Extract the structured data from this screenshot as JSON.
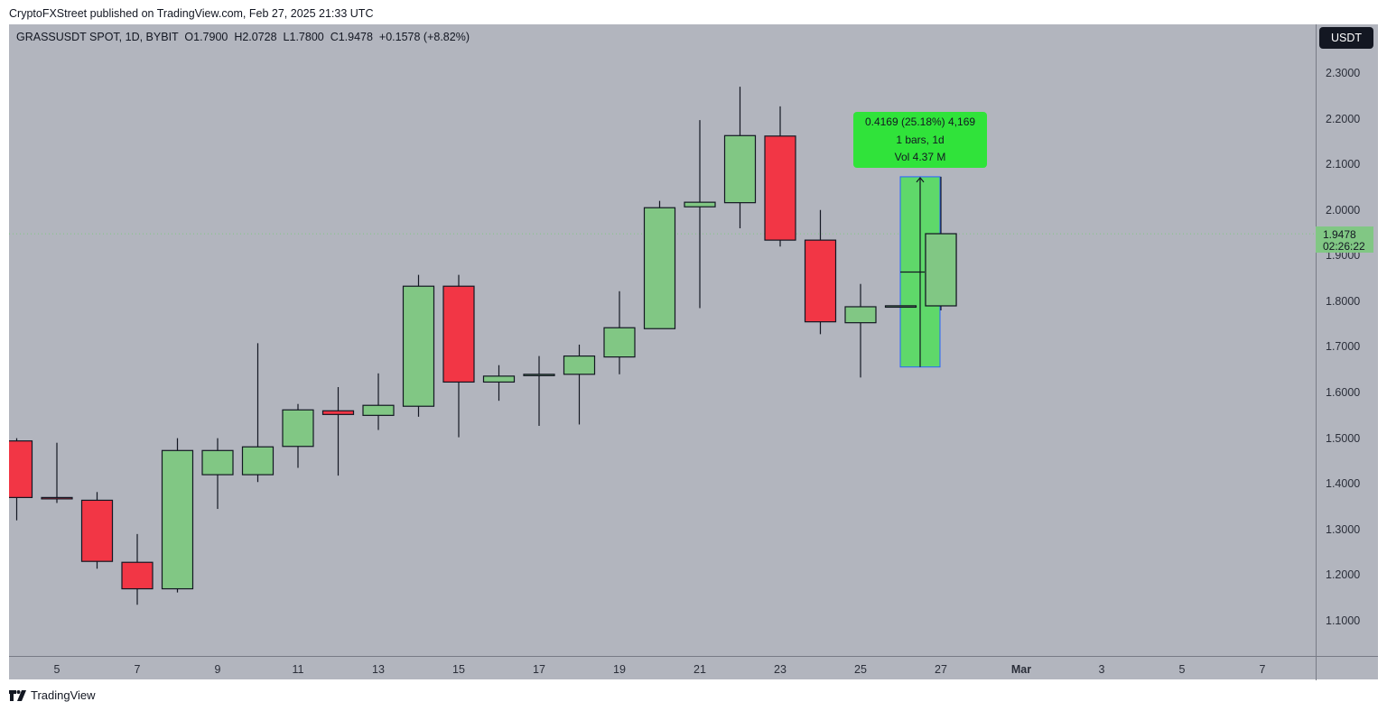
{
  "publication": {
    "text": "CryptoFXStreet published on TradingView.com, Feb 27, 2025 21:33 UTC"
  },
  "legend": {
    "symbol": "GRASSUSDT SPOT, 1D, BYBIT",
    "open": "O1.7900",
    "high": "H2.0728",
    "low": "L1.7800",
    "close": "C1.9478",
    "change": "+0.1578 (+8.82%)"
  },
  "price_axis": {
    "currency_button": "USDT",
    "ticks": [
      "2.3000",
      "2.2000",
      "2.1000",
      "2.0000",
      "1.9000",
      "1.8000",
      "1.7000",
      "1.6000",
      "1.5000",
      "1.4000",
      "1.3000",
      "1.2000",
      "1.1000"
    ],
    "last_price": "1.9478",
    "countdown": "02:26:22"
  },
  "time_axis": {
    "ticks": [
      "5",
      "7",
      "9",
      "11",
      "13",
      "15",
      "17",
      "19",
      "21",
      "23",
      "25",
      "27",
      "Mar",
      "3",
      "5",
      "7"
    ]
  },
  "measure_tooltip": {
    "line1": "0.4169 (25.18%) 4,169",
    "line2": "1 bars, 1d",
    "line3": "Vol 4.37 M"
  },
  "footer": {
    "brand": "TradingView"
  },
  "colors": {
    "background": "#b2b5be",
    "up": "#81c784",
    "down": "#f23645",
    "measure_fill": "#5fd86a",
    "measure_border": "#2962ff",
    "tooltip": "#30e33a",
    "axis_line": "#787b86"
  },
  "chart_data": {
    "type": "candlestick",
    "title": "GRASSUSDT SPOT, 1D, BYBIT",
    "xlabel": "",
    "ylabel": "USDT",
    "ylim": [
      1.02,
      2.39
    ],
    "grid": false,
    "x": [
      "Feb 4",
      "Feb 5",
      "Feb 6",
      "Feb 7",
      "Feb 8",
      "Feb 9",
      "Feb 10",
      "Feb 11",
      "Feb 12",
      "Feb 13",
      "Feb 14",
      "Feb 15",
      "Feb 16",
      "Feb 17",
      "Feb 18",
      "Feb 19",
      "Feb 20",
      "Feb 21",
      "Feb 22",
      "Feb 23",
      "Feb 24",
      "Feb 25",
      "Feb 26",
      "Feb 27"
    ],
    "series": [
      {
        "name": "open",
        "values": [
          1.494,
          1.37,
          1.364,
          1.228,
          1.17,
          1.42,
          1.42,
          1.482,
          1.56,
          1.55,
          1.57,
          1.833,
          1.623,
          1.638,
          1.64,
          1.678,
          1.74,
          2.007,
          2.016,
          2.162,
          1.934,
          1.753,
          1.79,
          1.79
        ]
      },
      {
        "name": "high",
        "values": [
          1.5,
          1.49,
          1.382,
          1.29,
          1.5,
          1.5,
          1.708,
          1.575,
          1.612,
          1.642,
          1.858,
          1.858,
          1.66,
          1.68,
          1.705,
          1.822,
          2.02,
          2.197,
          2.27,
          2.227,
          2.0,
          1.838,
          1.79,
          2.073
        ]
      },
      {
        "name": "low",
        "values": [
          1.32,
          1.358,
          1.214,
          1.135,
          1.162,
          1.345,
          1.404,
          1.435,
          1.418,
          1.518,
          1.547,
          1.502,
          1.582,
          1.527,
          1.53,
          1.64,
          1.74,
          1.785,
          1.96,
          1.92,
          1.728,
          1.633,
          1.79,
          1.78
        ]
      },
      {
        "name": "close",
        "values": [
          1.37,
          1.368,
          1.23,
          1.17,
          1.473,
          1.473,
          1.481,
          1.562,
          1.552,
          1.572,
          1.833,
          1.623,
          1.636,
          1.64,
          1.68,
          1.742,
          2.005,
          2.017,
          2.163,
          1.934,
          1.755,
          1.788,
          1.79,
          1.948
        ]
      }
    ],
    "annotations": [
      {
        "type": "last_price_line",
        "value": 1.9478,
        "label": "1.9478",
        "countdown": "02:26:22"
      },
      {
        "type": "price_range_measure",
        "from": 1.656,
        "to": 2.0728,
        "date": "Feb 26",
        "text": [
          "0.4169 (25.18%) 4,169",
          "1 bars, 1d",
          "Vol 4.37 M"
        ]
      }
    ]
  }
}
